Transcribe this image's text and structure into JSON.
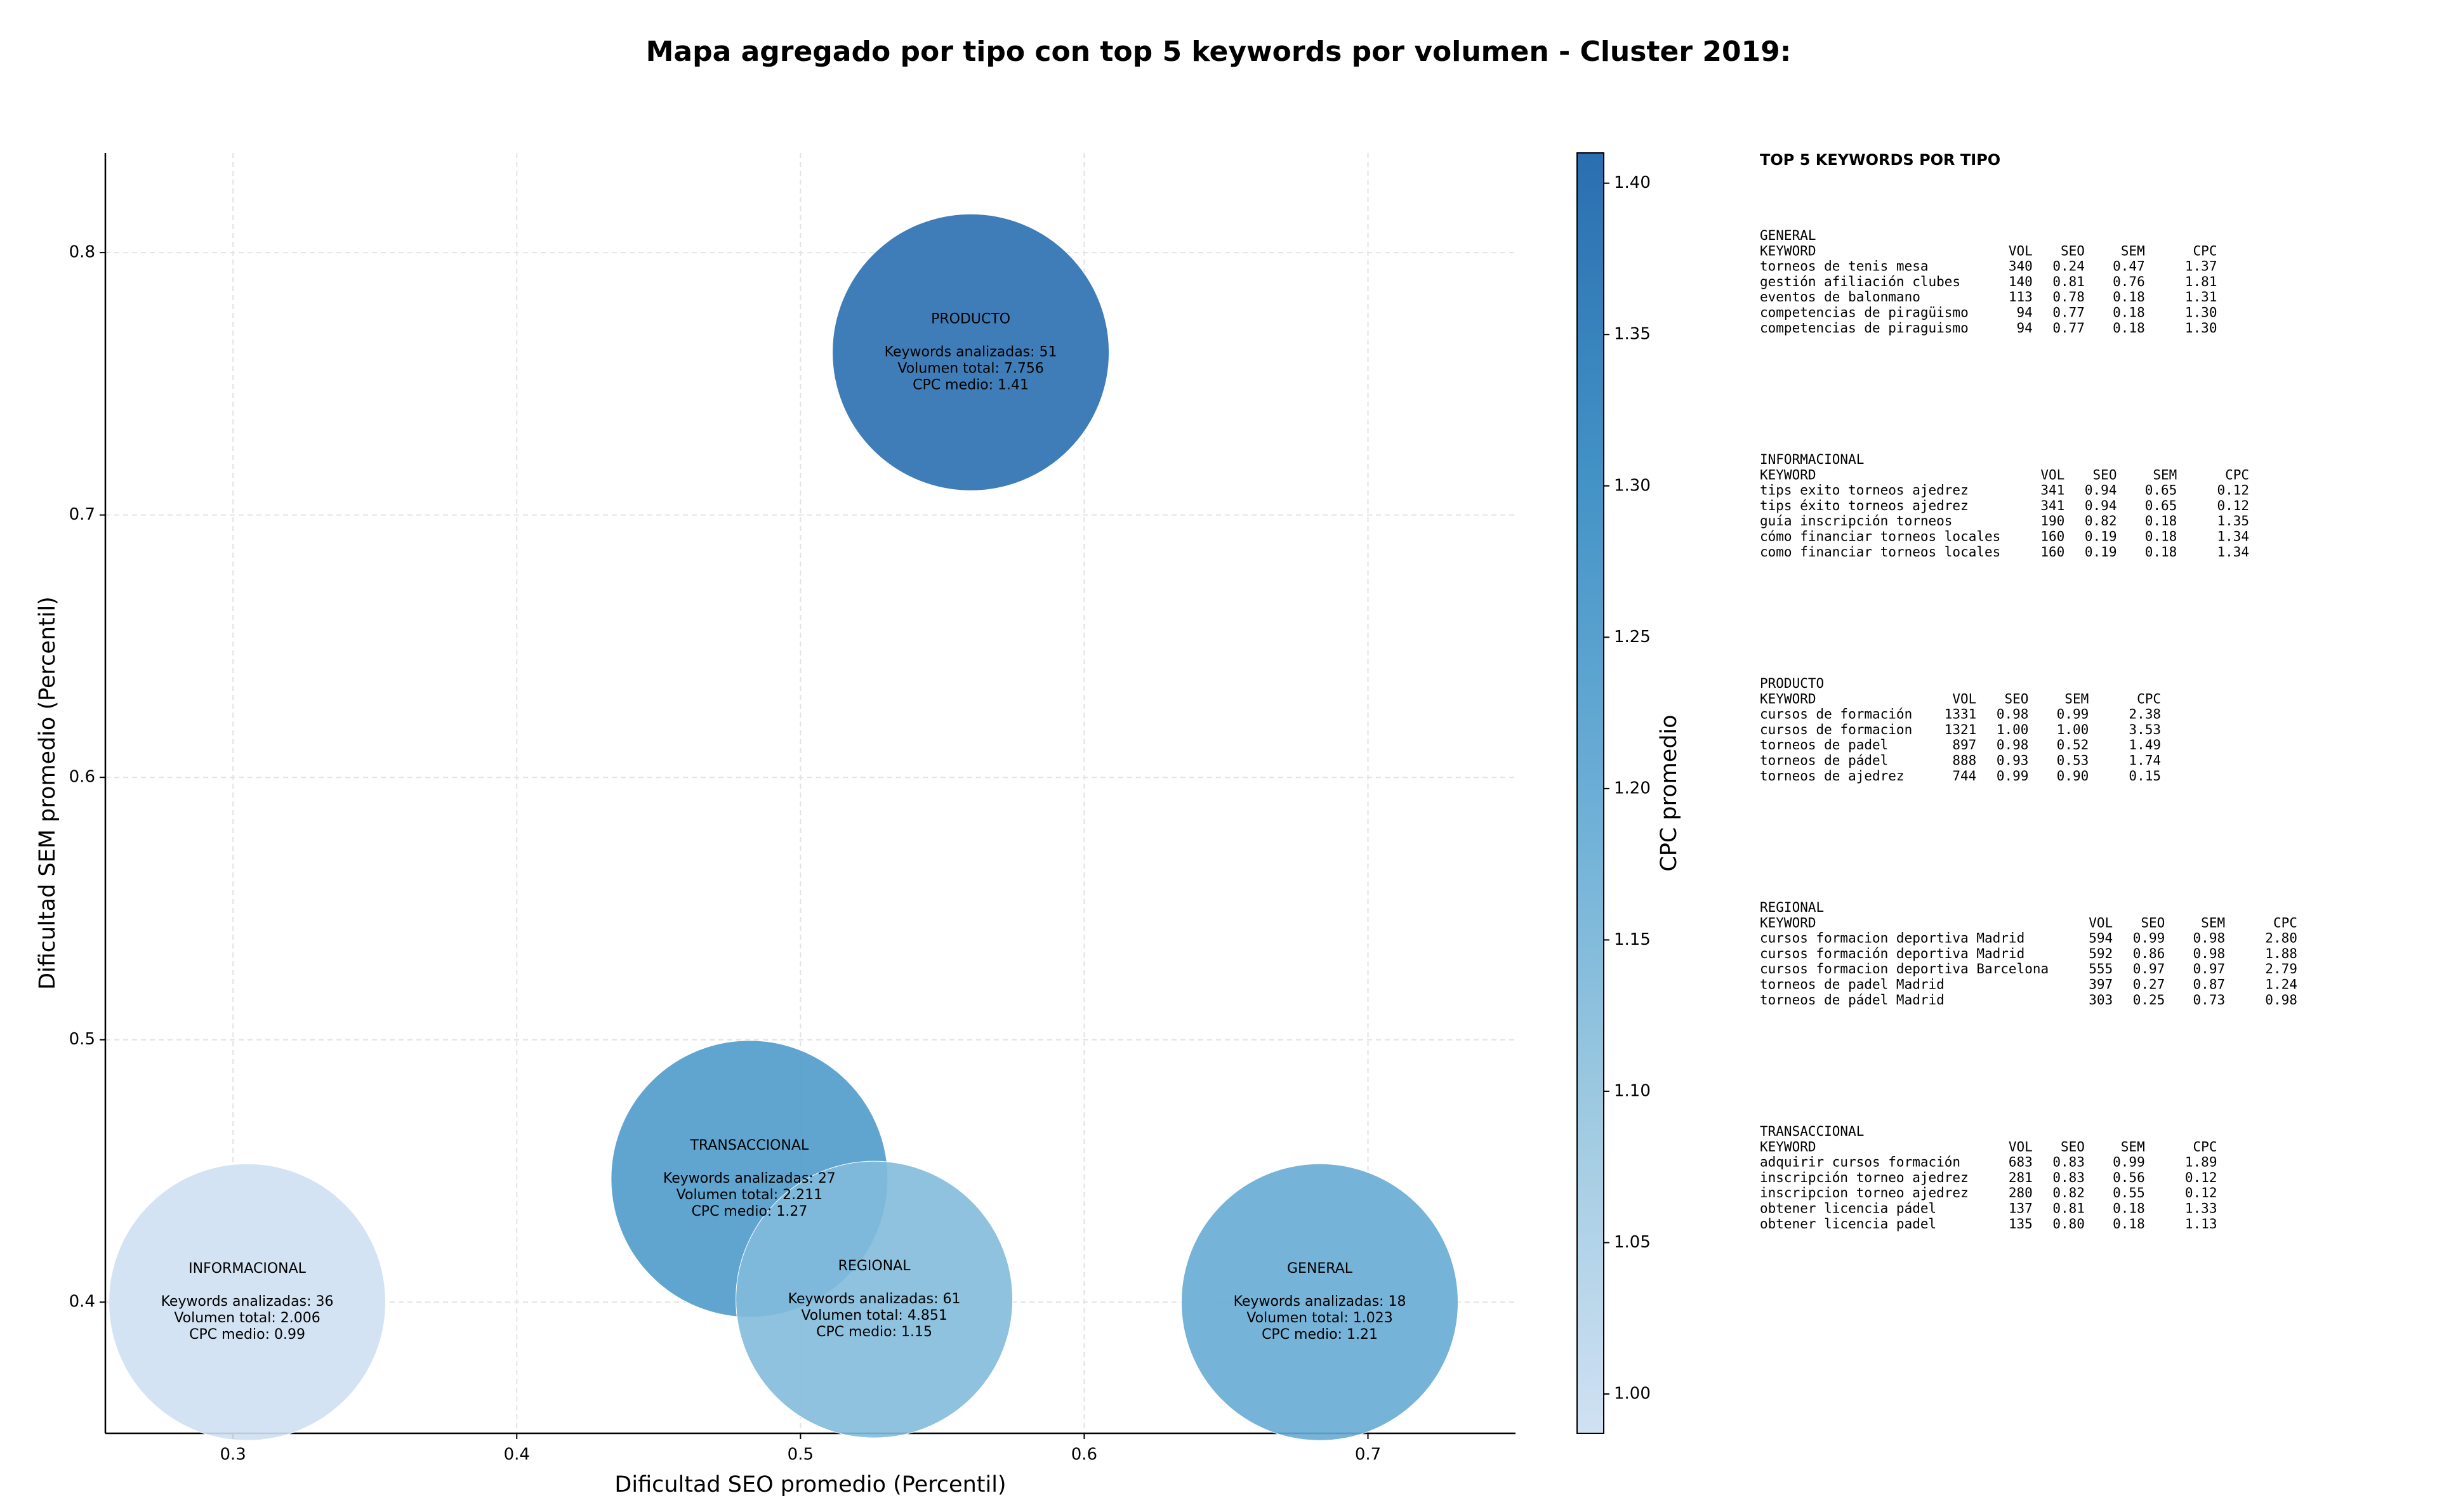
{
  "chart_data": {
    "type": "scatter",
    "title": "Mapa agregado por tipo con top 5 keywords por volumen - Cluster 2019:",
    "x_label": "Dificultad SEO promedio (Percentil)",
    "y_label": "Dificultad SEM promedio (Percentil)",
    "colorbar_label": "CPC promedio",
    "xlim": [
      0.255,
      0.752
    ],
    "ylim": [
      0.35,
      0.838
    ],
    "xticks": [
      0.3,
      0.4,
      0.5,
      0.6,
      0.7
    ],
    "yticks": [
      0.4,
      0.5,
      0.6,
      0.7,
      0.8
    ],
    "clim": [
      0.987,
      1.41
    ],
    "cticks": [
      {
        "value": 1.0,
        "label": "1.00"
      },
      1.05,
      {
        "value": 1.1,
        "label": "1.10"
      },
      1.15,
      {
        "value": 1.2,
        "label": "1.20"
      },
      1.25,
      {
        "value": 1.3,
        "label": "1.30"
      },
      1.35,
      {
        "value": 1.4,
        "label": "1.40"
      }
    ],
    "colorscale": [
      "#d0e1f2",
      "#9ecae1",
      "#6baed6",
      "#4292c6",
      "#2a6fb0"
    ],
    "grid": true,
    "points": [
      {
        "name": "INFORMACIONAL",
        "x": 0.305,
        "y": 0.4,
        "cpc": 0.99,
        "lines": [
          "Keywords analizadas: 36",
          "Volumen total: 2.006",
          "CPC medio: 0.99"
        ]
      },
      {
        "name": "GENERAL",
        "x": 0.683,
        "y": 0.4,
        "cpc": 1.21,
        "lines": [
          "Keywords analizadas: 18",
          "Volumen total: 1.023",
          "CPC medio: 1.21"
        ]
      },
      {
        "name": "PRODUCTO",
        "x": 0.56,
        "y": 0.762,
        "cpc": 1.41,
        "lines": [
          "Keywords analizadas: 51",
          "Volumen total: 7.756",
          "CPC medio: 1.41"
        ]
      },
      {
        "name": "TRANSACCIONAL",
        "x": 0.482,
        "y": 0.447,
        "cpc": 1.27,
        "lines": [
          "Keywords analizadas: 27",
          "Volumen total: 2.211",
          "CPC medio: 1.27"
        ]
      },
      {
        "name": "REGIONAL",
        "x": 0.526,
        "y": 0.401,
        "cpc": 1.15,
        "lines": [
          "Keywords analizadas: 61",
          "Volumen total: 4.851",
          "CPC medio: 1.15"
        ]
      }
    ]
  },
  "panel": {
    "title": "TOP 5 KEYWORDS POR TIPO",
    "header": [
      "KEYWORD",
      "VOL",
      "SEO",
      "SEM",
      "CPC"
    ],
    "groups": [
      {
        "name": "GENERAL",
        "rows": [
          [
            "torneos de tenis mesa",
            "340",
            "0.24",
            "0.47",
            "1.37"
          ],
          [
            "gestión afiliación clubes",
            "140",
            "0.81",
            "0.76",
            "1.81"
          ],
          [
            "eventos de balonmano",
            "113",
            "0.78",
            "0.18",
            "1.31"
          ],
          [
            "competencias de piragüismo",
            "94",
            "0.77",
            "0.18",
            "1.30"
          ],
          [
            "competencias de piraguismo",
            "94",
            "0.77",
            "0.18",
            "1.30"
          ]
        ]
      },
      {
        "name": "INFORMACIONAL",
        "rows": [
          [
            "tips exito torneos ajedrez",
            "341",
            "0.94",
            "0.65",
            "0.12"
          ],
          [
            "tips éxito torneos ajedrez",
            "341",
            "0.94",
            "0.65",
            "0.12"
          ],
          [
            "guía inscripción torneos",
            "190",
            "0.82",
            "0.18",
            "1.35"
          ],
          [
            "cómo financiar torneos locales",
            "160",
            "0.19",
            "0.18",
            "1.34"
          ],
          [
            "como financiar torneos locales",
            "160",
            "0.19",
            "0.18",
            "1.34"
          ]
        ]
      },
      {
        "name": "PRODUCTO",
        "rows": [
          [
            "cursos de formación",
            "1331",
            "0.98",
            "0.99",
            "2.38"
          ],
          [
            "cursos de formacion",
            "1321",
            "1.00",
            "1.00",
            "3.53"
          ],
          [
            "torneos de padel",
            "897",
            "0.98",
            "0.52",
            "1.49"
          ],
          [
            "torneos de pádel",
            "888",
            "0.93",
            "0.53",
            "1.74"
          ],
          [
            "torneos de ajedrez",
            "744",
            "0.99",
            "0.90",
            "0.15"
          ]
        ]
      },
      {
        "name": "REGIONAL",
        "rows": [
          [
            "cursos formacion deportiva Madrid",
            "594",
            "0.99",
            "0.98",
            "2.80"
          ],
          [
            "cursos formación deportiva Madrid",
            "592",
            "0.86",
            "0.98",
            "1.88"
          ],
          [
            "cursos formacion deportiva Barcelona",
            "555",
            "0.97",
            "0.97",
            "2.79"
          ],
          [
            "torneos de padel Madrid",
            "397",
            "0.27",
            "0.87",
            "1.24"
          ],
          [
            "torneos de pádel Madrid",
            "303",
            "0.25",
            "0.73",
            "0.98"
          ]
        ]
      },
      {
        "name": "TRANSACCIONAL",
        "rows": [
          [
            "adquirir cursos formación",
            "683",
            "0.83",
            "0.99",
            "1.89"
          ],
          [
            "inscripción torneo ajedrez",
            "281",
            "0.83",
            "0.56",
            "0.12"
          ],
          [
            "inscripcion torneo ajedrez",
            "280",
            "0.82",
            "0.55",
            "0.12"
          ],
          [
            "obtener licencia pádel",
            "137",
            "0.81",
            "0.18",
            "1.33"
          ],
          [
            "obtener licencia padel",
            "135",
            "0.80",
            "0.18",
            "1.13"
          ]
        ]
      }
    ]
  }
}
